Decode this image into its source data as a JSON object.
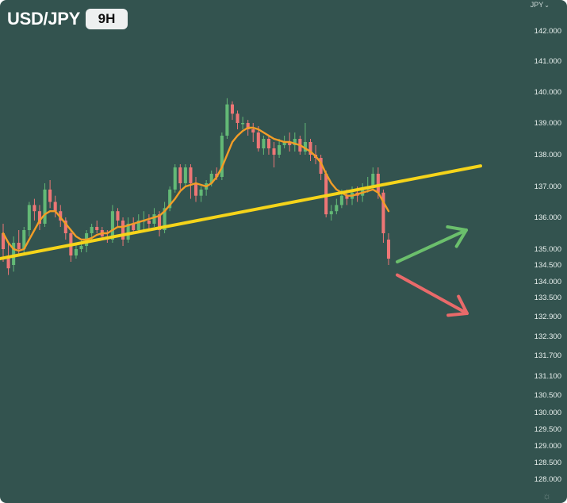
{
  "header": {
    "pair": "USD/JPY",
    "timeframe": "9H",
    "currency_selector": "JPY",
    "currency_chevron": "⌄"
  },
  "icons": {
    "settings": "gear-icon"
  },
  "colors": {
    "background": "#33534f",
    "bull": "#63b976",
    "bear": "#ee7676",
    "moving_average": "#f29d27",
    "trendline": "#f5d41a",
    "arrow_up": "#6bbf6c",
    "arrow_down": "#e96a6a",
    "axis_text": "#e8efed"
  },
  "chart_data": {
    "type": "candlestick",
    "title": "USD/JPY",
    "timeframe": "9H",
    "y_axis": {
      "position": "right",
      "unit": "JPY",
      "ylim": [
        127.6,
        143.0
      ],
      "tick_labels": [
        "142.000",
        "141.000",
        "140.000",
        "139.000",
        "138.000",
        "137.000",
        "136.000",
        "135.000",
        "134.500",
        "134.000",
        "133.500",
        "132.900",
        "132.300",
        "131.700",
        "131.100",
        "130.500",
        "130.000",
        "129.500",
        "129.000",
        "128.500",
        "128.000"
      ]
    },
    "grid": false,
    "candles": [
      [
        135.5,
        135.0,
        135.8,
        134.6
      ],
      [
        134.8,
        134.4,
        135.2,
        134.2
      ],
      [
        134.5,
        135.2,
        135.4,
        134.3
      ],
      [
        135.2,
        135.0,
        135.6,
        134.8
      ],
      [
        135.0,
        135.6,
        135.7,
        134.8
      ],
      [
        135.6,
        136.4,
        136.5,
        135.4
      ],
      [
        136.4,
        136.2,
        136.6,
        135.9
      ],
      [
        136.2,
        135.8,
        136.4,
        135.6
      ],
      [
        135.8,
        136.9,
        137.1,
        135.7
      ],
      [
        136.9,
        136.5,
        137.2,
        136.3
      ],
      [
        136.5,
        136.2,
        136.7,
        136.0
      ],
      [
        136.2,
        135.9,
        136.4,
        135.7
      ],
      [
        135.9,
        135.5,
        136.0,
        135.3
      ],
      [
        135.5,
        134.8,
        135.6,
        134.6
      ],
      [
        134.8,
        135.0,
        135.2,
        134.7
      ],
      [
        135.0,
        135.1,
        135.3,
        134.9
      ],
      [
        135.1,
        135.5,
        135.6,
        134.9
      ],
      [
        135.5,
        135.7,
        135.8,
        135.3
      ],
      [
        135.7,
        135.6,
        135.9,
        135.5
      ],
      [
        135.6,
        135.4,
        135.7,
        135.3
      ],
      [
        135.4,
        135.3,
        135.6,
        135.2
      ],
      [
        135.3,
        136.2,
        136.4,
        135.2
      ],
      [
        136.2,
        135.9,
        136.3,
        135.7
      ],
      [
        135.9,
        135.3,
        136.0,
        135.1
      ],
      [
        135.3,
        135.8,
        136.0,
        135.2
      ],
      [
        135.8,
        135.6,
        136.0,
        135.5
      ],
      [
        135.6,
        135.9,
        136.1,
        135.5
      ],
      [
        135.9,
        135.9,
        136.2,
        135.6
      ],
      [
        135.9,
        135.8,
        136.1,
        135.6
      ],
      [
        135.8,
        136.1,
        136.3,
        135.7
      ],
      [
        136.1,
        135.6,
        136.2,
        135.4
      ],
      [
        135.6,
        136.3,
        136.5,
        135.5
      ],
      [
        136.3,
        136.9,
        137.0,
        136.2
      ],
      [
        136.9,
        137.6,
        137.7,
        136.8
      ],
      [
        137.6,
        137.1,
        137.7,
        136.9
      ],
      [
        137.1,
        137.6,
        137.7,
        137.0
      ],
      [
        137.6,
        137.1,
        137.7,
        136.6
      ],
      [
        137.1,
        136.7,
        137.3,
        136.5
      ],
      [
        136.7,
        136.9,
        137.0,
        136.5
      ],
      [
        136.9,
        137.1,
        137.2,
        136.7
      ],
      [
        137.1,
        137.4,
        137.5,
        137.0
      ],
      [
        137.4,
        137.3,
        137.6,
        137.2
      ],
      [
        137.3,
        138.6,
        138.7,
        137.2
      ],
      [
        138.6,
        139.6,
        139.8,
        138.5
      ],
      [
        139.6,
        139.3,
        139.7,
        139.1
      ],
      [
        139.3,
        139.0,
        139.4,
        138.8
      ],
      [
        139.0,
        139.0,
        139.2,
        138.8
      ],
      [
        139.0,
        138.8,
        139.1,
        138.6
      ],
      [
        138.8,
        138.7,
        139.0,
        138.4
      ],
      [
        138.7,
        138.2,
        138.9,
        138.1
      ],
      [
        138.2,
        138.5,
        138.6,
        138.0
      ],
      [
        138.5,
        138.2,
        138.6,
        138.0
      ],
      [
        138.2,
        138.0,
        138.4,
        137.6
      ],
      [
        138.0,
        138.3,
        138.5,
        137.9
      ],
      [
        138.3,
        138.4,
        138.6,
        138.2
      ],
      [
        138.4,
        138.3,
        138.7,
        138.1
      ],
      [
        138.3,
        138.5,
        138.7,
        138.1
      ],
      [
        138.5,
        138.1,
        138.6,
        138.0
      ],
      [
        138.1,
        138.4,
        139.0,
        138.0
      ],
      [
        138.4,
        138.0,
        138.5,
        137.8
      ],
      [
        138.0,
        137.9,
        138.3,
        137.7
      ],
      [
        137.9,
        137.4,
        138.0,
        137.2
      ],
      [
        137.4,
        136.1,
        137.5,
        136.0
      ],
      [
        136.1,
        136.2,
        136.4,
        135.9
      ],
      [
        136.2,
        136.4,
        136.6,
        136.1
      ],
      [
        136.4,
        136.7,
        136.9,
        136.3
      ],
      [
        136.7,
        136.6,
        136.9,
        136.4
      ],
      [
        136.6,
        136.8,
        137.0,
        136.4
      ],
      [
        136.8,
        136.7,
        137.0,
        136.5
      ],
      [
        136.7,
        136.9,
        137.1,
        136.5
      ],
      [
        136.9,
        137.0,
        137.3,
        136.8
      ],
      [
        137.0,
        137.4,
        137.6,
        136.9
      ],
      [
        137.4,
        136.8,
        137.6,
        136.6
      ],
      [
        136.8,
        135.5,
        136.9,
        135.2
      ],
      [
        135.3,
        134.7,
        135.5,
        134.5
      ]
    ],
    "moving_average": [
      135.5,
      135.2,
      135.0,
      134.95,
      135.0,
      135.3,
      135.6,
      135.9,
      136.1,
      136.2,
      136.2,
      136.0,
      135.8,
      135.6,
      135.4,
      135.3,
      135.3,
      135.35,
      135.45,
      135.5,
      135.5,
      135.6,
      135.7,
      135.7,
      135.75,
      135.8,
      135.85,
      135.9,
      135.95,
      136.0,
      136.05,
      136.2,
      136.4,
      136.6,
      136.85,
      137.0,
      137.05,
      137.1,
      137.05,
      137.0,
      137.1,
      137.3,
      137.6,
      138.0,
      138.4,
      138.6,
      138.75,
      138.85,
      138.85,
      138.8,
      138.7,
      138.6,
      138.5,
      138.45,
      138.4,
      138.4,
      138.35,
      138.3,
      138.2,
      138.1,
      137.95,
      137.75,
      137.4,
      137.1,
      136.9,
      136.8,
      136.7,
      136.7,
      136.75,
      136.8,
      136.85,
      136.9,
      136.8,
      136.5,
      136.2
    ],
    "trendline": {
      "x": [
        0,
        75
      ],
      "y": [
        134.7,
        137.1
      ]
    },
    "arrows": [
      {
        "direction": "up",
        "x": [
          0,
          1
        ],
        "y": [
          134.6,
          135.6
        ]
      },
      {
        "direction": "down",
        "x": [
          0,
          1
        ],
        "y": [
          134.2,
          133.0
        ]
      }
    ]
  }
}
